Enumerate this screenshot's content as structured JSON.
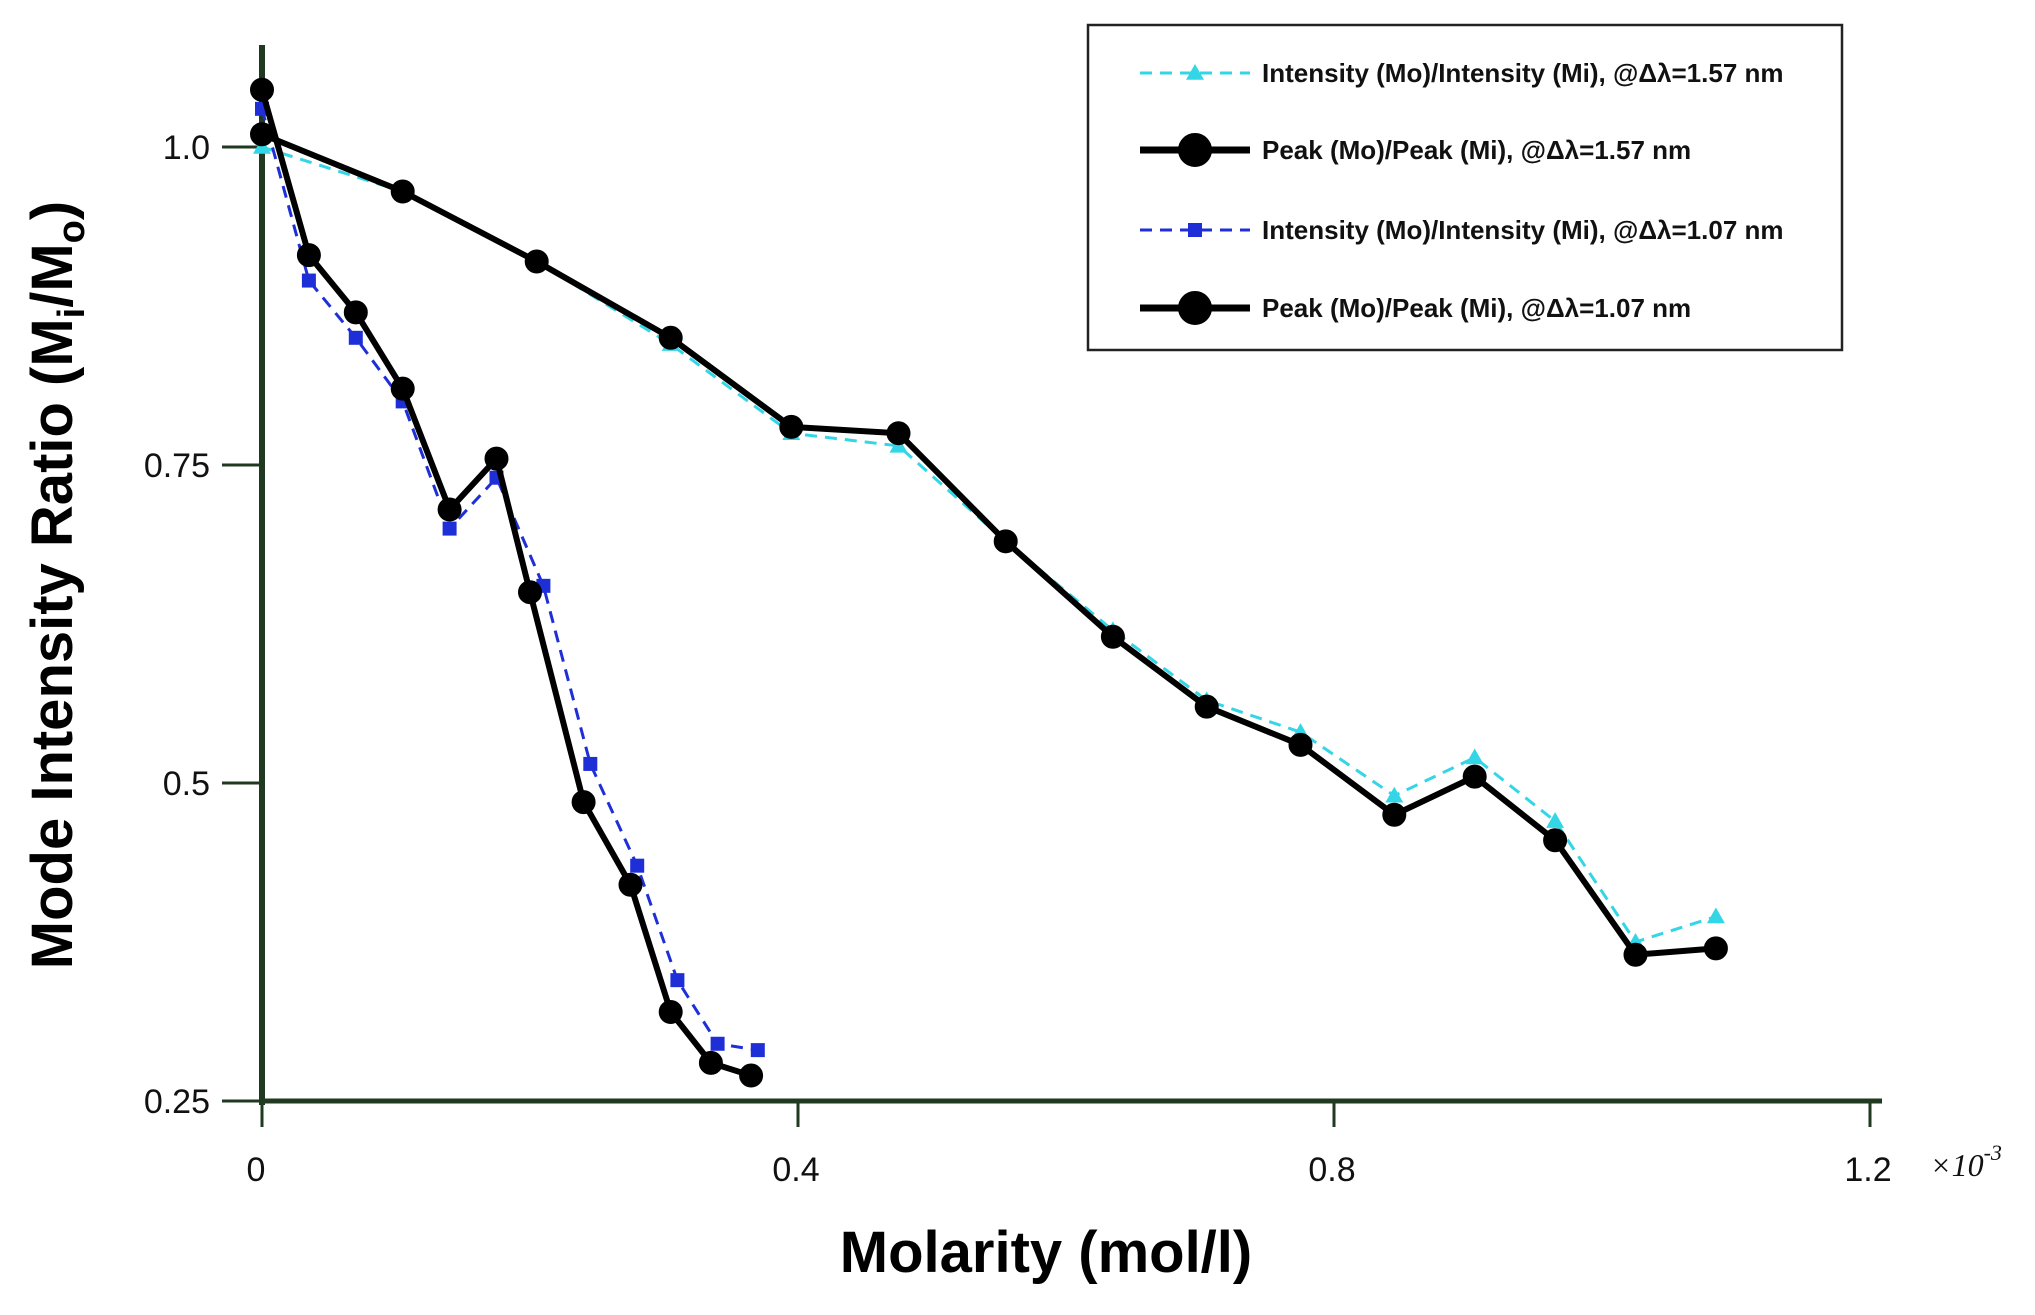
{
  "chart_data": {
    "type": "line",
    "title": "",
    "xlabel": "Molarity (mol/l)",
    "ylabel_main": "Mode Intensity Ratio (M",
    "ylabel_sub1": "i",
    "ylabel_slash": "/M",
    "ylabel_sub2": "o",
    "ylabel_close": ")",
    "x_multiplier_base": "×10",
    "x_multiplier_exp": "-3",
    "xlim": [
      0,
      1.2
    ],
    "ylim": [
      0.25,
      1.07
    ],
    "x_ticks": [
      {
        "value": 0,
        "label": "0"
      },
      {
        "value": 0.4,
        "label": "0.4"
      },
      {
        "value": 0.8,
        "label": "0.8"
      },
      {
        "value": 1.2,
        "label": "1.2"
      }
    ],
    "y_ticks": [
      {
        "value": 0.25,
        "label": "0.25"
      },
      {
        "value": 0.5,
        "label": "0.5"
      },
      {
        "value": 0.75,
        "label": "0.75"
      },
      {
        "value": 1.0,
        "label": "1.0"
      }
    ],
    "legend_position": "top-right",
    "series": [
      {
        "name": "Intensity (Mo)/Intensity (Mi), @Δλ=1.57 nm",
        "color": "#33d6e6",
        "dash": true,
        "marker": "triangle",
        "x": [
          0,
          0.105,
          0.205,
          0.305,
          0.395,
          0.475,
          0.555,
          0.635,
          0.705,
          0.775,
          0.845,
          0.905,
          0.965,
          1.025,
          1.085
        ],
        "y": [
          1.0,
          0.965,
          0.91,
          0.845,
          0.775,
          0.765,
          0.69,
          0.62,
          0.565,
          0.54,
          0.49,
          0.52,
          0.47,
          0.375,
          0.395
        ]
      },
      {
        "name": "Peak (Mo)/Peak (Mi), @Δλ=1.57 nm",
        "color": "#000000",
        "dash": false,
        "marker": "circle",
        "x": [
          0,
          0.105,
          0.205,
          0.305,
          0.395,
          0.475,
          0.555,
          0.635,
          0.705,
          0.775,
          0.845,
          0.905,
          0.965,
          1.025,
          1.085
        ],
        "y": [
          1.01,
          0.965,
          0.91,
          0.85,
          0.78,
          0.775,
          0.69,
          0.615,
          0.56,
          0.53,
          0.475,
          0.505,
          0.455,
          0.365,
          0.37
        ]
      },
      {
        "name": "Intensity (Mo)/Intensity (Mi), @Δλ=1.07 nm",
        "color": "#1f2fd8",
        "dash": true,
        "marker": "square",
        "x": [
          0,
          0.035,
          0.07,
          0.105,
          0.14,
          0.175,
          0.21,
          0.245,
          0.28,
          0.31,
          0.34,
          0.37
        ],
        "y": [
          1.03,
          0.895,
          0.85,
          0.8,
          0.7,
          0.74,
          0.655,
          0.515,
          0.435,
          0.345,
          0.295,
          0.29
        ]
      },
      {
        "name": "Peak (Mo)/Peak (Mi), @Δλ=1.07 nm",
        "color": "#000000",
        "dash": false,
        "marker": "circle",
        "x": [
          0,
          0.035,
          0.07,
          0.105,
          0.14,
          0.175,
          0.2,
          0.24,
          0.275,
          0.305,
          0.335,
          0.365
        ],
        "y": [
          1.045,
          0.915,
          0.87,
          0.81,
          0.715,
          0.755,
          0.65,
          0.485,
          0.42,
          0.32,
          0.28,
          0.27
        ]
      }
    ]
  }
}
